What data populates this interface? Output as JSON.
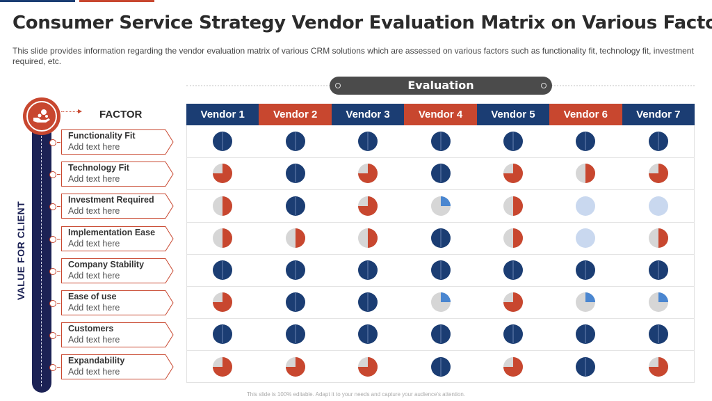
{
  "title": "Consumer Service Strategy Vendor Evaluation Matrix on Various Factors",
  "subtitle": "This slide provides information regarding the vendor evaluation matrix of various CRM solutions which are assessed on various factors such as functionality fit, technology fit, investment required, etc.",
  "evaluation_label": "Evaluation",
  "factor_header": "FACTOR",
  "side_label": "VALUE FOR CLIENT",
  "footer": "This slide is 100% editable. Adapt it to your needs and capture your audience's attention.",
  "colors": {
    "navy": "#1b3d73",
    "red": "#c8472f",
    "light_gray": "#d6d6d6",
    "light_blue": "#c9d8ef",
    "blue": "#4a86d0",
    "dark": "#1c2255"
  },
  "icons": {
    "badge": "handshake-money-icon"
  },
  "vendors": [
    {
      "label": "Vendor 1",
      "color": "#1b3d73"
    },
    {
      "label": "Vendor 2",
      "color": "#c8472f"
    },
    {
      "label": "Vendor 3",
      "color": "#1b3d73"
    },
    {
      "label": "Vendor 4",
      "color": "#c8472f"
    },
    {
      "label": "Vendor 5",
      "color": "#1b3d73"
    },
    {
      "label": "Vendor 6",
      "color": "#c8472f"
    },
    {
      "label": "Vendor 7",
      "color": "#1b3d73"
    }
  ],
  "factors": [
    {
      "name": "Functionality Fit",
      "placeholder": "Add text here"
    },
    {
      "name": "Technology Fit",
      "placeholder": "Add text here"
    },
    {
      "name": "Investment Required",
      "placeholder": "Add text here"
    },
    {
      "name": "Implementation Ease",
      "placeholder": "Add text here"
    },
    {
      "name": "Company Stability",
      "placeholder": "Add text here"
    },
    {
      "name": "Ease of use",
      "placeholder": "Add text here"
    },
    {
      "name": "Customers",
      "placeholder": "Add text here"
    },
    {
      "name": "Expandability",
      "placeholder": "Add text here"
    }
  ],
  "ratings_legend": {
    "full": "full navy circle",
    "half": "half red / half gray",
    "three_quarter": "three-quarter red",
    "quarter": "quarter blue on gray",
    "light": "light blue circle"
  },
  "ratings": [
    [
      "full",
      "full",
      "full",
      "full",
      "full",
      "full",
      "full"
    ],
    [
      "three_quarter",
      "full",
      "three_quarter",
      "full",
      "three_quarter",
      "half",
      "three_quarter"
    ],
    [
      "half",
      "full",
      "three_quarter",
      "quarter",
      "half",
      "light",
      "light"
    ],
    [
      "half",
      "half",
      "half",
      "full",
      "half",
      "light",
      "half"
    ],
    [
      "full",
      "full",
      "full",
      "full",
      "full",
      "full",
      "full"
    ],
    [
      "three_quarter",
      "full",
      "full",
      "quarter",
      "three_quarter",
      "quarter",
      "quarter"
    ],
    [
      "full",
      "full",
      "full",
      "full",
      "full",
      "full",
      "full"
    ],
    [
      "three_quarter",
      "three_quarter",
      "three_quarter",
      "full",
      "three_quarter",
      "full",
      "three_quarter"
    ]
  ]
}
